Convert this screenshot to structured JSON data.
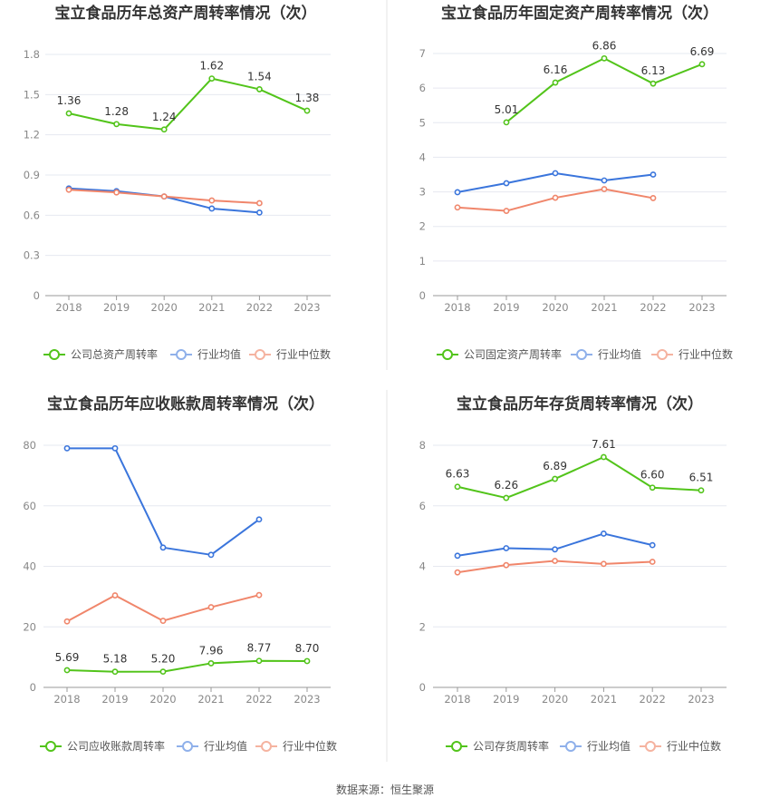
{
  "source": "数据来源：恒生聚源",
  "colors": {
    "company": "#52c41a",
    "avg": "#3a75dc",
    "median": "#f0866b",
    "grid": "#e6e8f0",
    "axis": "#999999",
    "divider": "#e6e6e6"
  },
  "chart_data": [
    {
      "type": "line",
      "title": "宝立食品历年总资产周转率情况（次）",
      "x": [
        "2018",
        "2019",
        "2020",
        "2021",
        "2022",
        "2023"
      ],
      "yticks": [
        "0",
        "0.3",
        "0.6",
        "0.9",
        "1.2",
        "1.5",
        "1.8"
      ],
      "ylim": [
        0,
        1.8
      ],
      "grid": true,
      "legend_position": "bottom",
      "series": [
        {
          "name": "公司总资产周转率",
          "values": [
            1.36,
            1.28,
            1.24,
            1.62,
            1.54,
            1.38
          ],
          "labels": [
            "1.36",
            "1.28",
            "1.24",
            "1.62",
            "1.54",
            "1.38"
          ]
        },
        {
          "name": "行业均值",
          "values": [
            0.8,
            0.78,
            0.74,
            0.65,
            0.62,
            null
          ]
        },
        {
          "name": "行业中位数",
          "values": [
            0.79,
            0.77,
            0.74,
            0.71,
            0.69,
            null
          ]
        }
      ]
    },
    {
      "type": "line",
      "title": "宝立食品历年固定资产周转率情况（次）",
      "x": [
        "2018",
        "2019",
        "2020",
        "2021",
        "2022",
        "2023"
      ],
      "yticks": [
        "0",
        "1",
        "2",
        "3",
        "4",
        "5",
        "6",
        "7"
      ],
      "ylim": [
        0,
        7
      ],
      "grid": true,
      "legend_position": "bottom",
      "series": [
        {
          "name": "公司固定资产周转率",
          "values": [
            null,
            5.01,
            6.16,
            6.86,
            6.13,
            6.69
          ],
          "labels": [
            null,
            "5.01",
            "6.16",
            "6.86",
            "6.13",
            "6.69"
          ]
        },
        {
          "name": "行业均值",
          "values": [
            2.99,
            3.25,
            3.54,
            3.33,
            3.5,
            null
          ]
        },
        {
          "name": "行业中位数",
          "values": [
            2.55,
            2.45,
            2.83,
            3.08,
            2.82,
            null
          ]
        }
      ]
    },
    {
      "type": "line",
      "title": "宝立食品历年应收账款周转率情况（次）",
      "x": [
        "2018",
        "2019",
        "2020",
        "2021",
        "2022",
        "2023"
      ],
      "yticks": [
        "0",
        "20",
        "40",
        "60",
        "80"
      ],
      "ylim": [
        0,
        80
      ],
      "grid": true,
      "legend_position": "bottom",
      "series": [
        {
          "name": "公司应收账款周转率",
          "values": [
            5.69,
            5.18,
            5.2,
            7.96,
            8.77,
            8.7
          ],
          "labels": [
            "5.69",
            "5.18",
            "5.20",
            "7.96",
            "8.77",
            "8.70"
          ]
        },
        {
          "name": "行业均值",
          "values": [
            79.0,
            79.0,
            46.2,
            43.8,
            55.5,
            null
          ]
        },
        {
          "name": "行业中位数",
          "values": [
            21.8,
            30.4,
            22.0,
            26.5,
            30.5,
            null
          ]
        }
      ]
    },
    {
      "type": "line",
      "title": "宝立食品历年存货周转率情况（次）",
      "x": [
        "2018",
        "2019",
        "2020",
        "2021",
        "2022",
        "2023"
      ],
      "yticks": [
        "0",
        "2",
        "4",
        "6",
        "8"
      ],
      "ylim": [
        0,
        8
      ],
      "grid": true,
      "legend_position": "bottom",
      "series": [
        {
          "name": "公司存货周转率",
          "values": [
            6.63,
            6.26,
            6.89,
            7.61,
            6.6,
            6.51
          ],
          "labels": [
            "6.63",
            "6.26",
            "6.89",
            "7.61",
            "6.60",
            "6.51"
          ]
        },
        {
          "name": "行业均值",
          "values": [
            4.35,
            4.6,
            4.56,
            5.08,
            4.7,
            null
          ]
        },
        {
          "name": "行业中位数",
          "values": [
            3.8,
            4.04,
            4.18,
            4.08,
            4.15,
            null
          ]
        }
      ]
    }
  ]
}
